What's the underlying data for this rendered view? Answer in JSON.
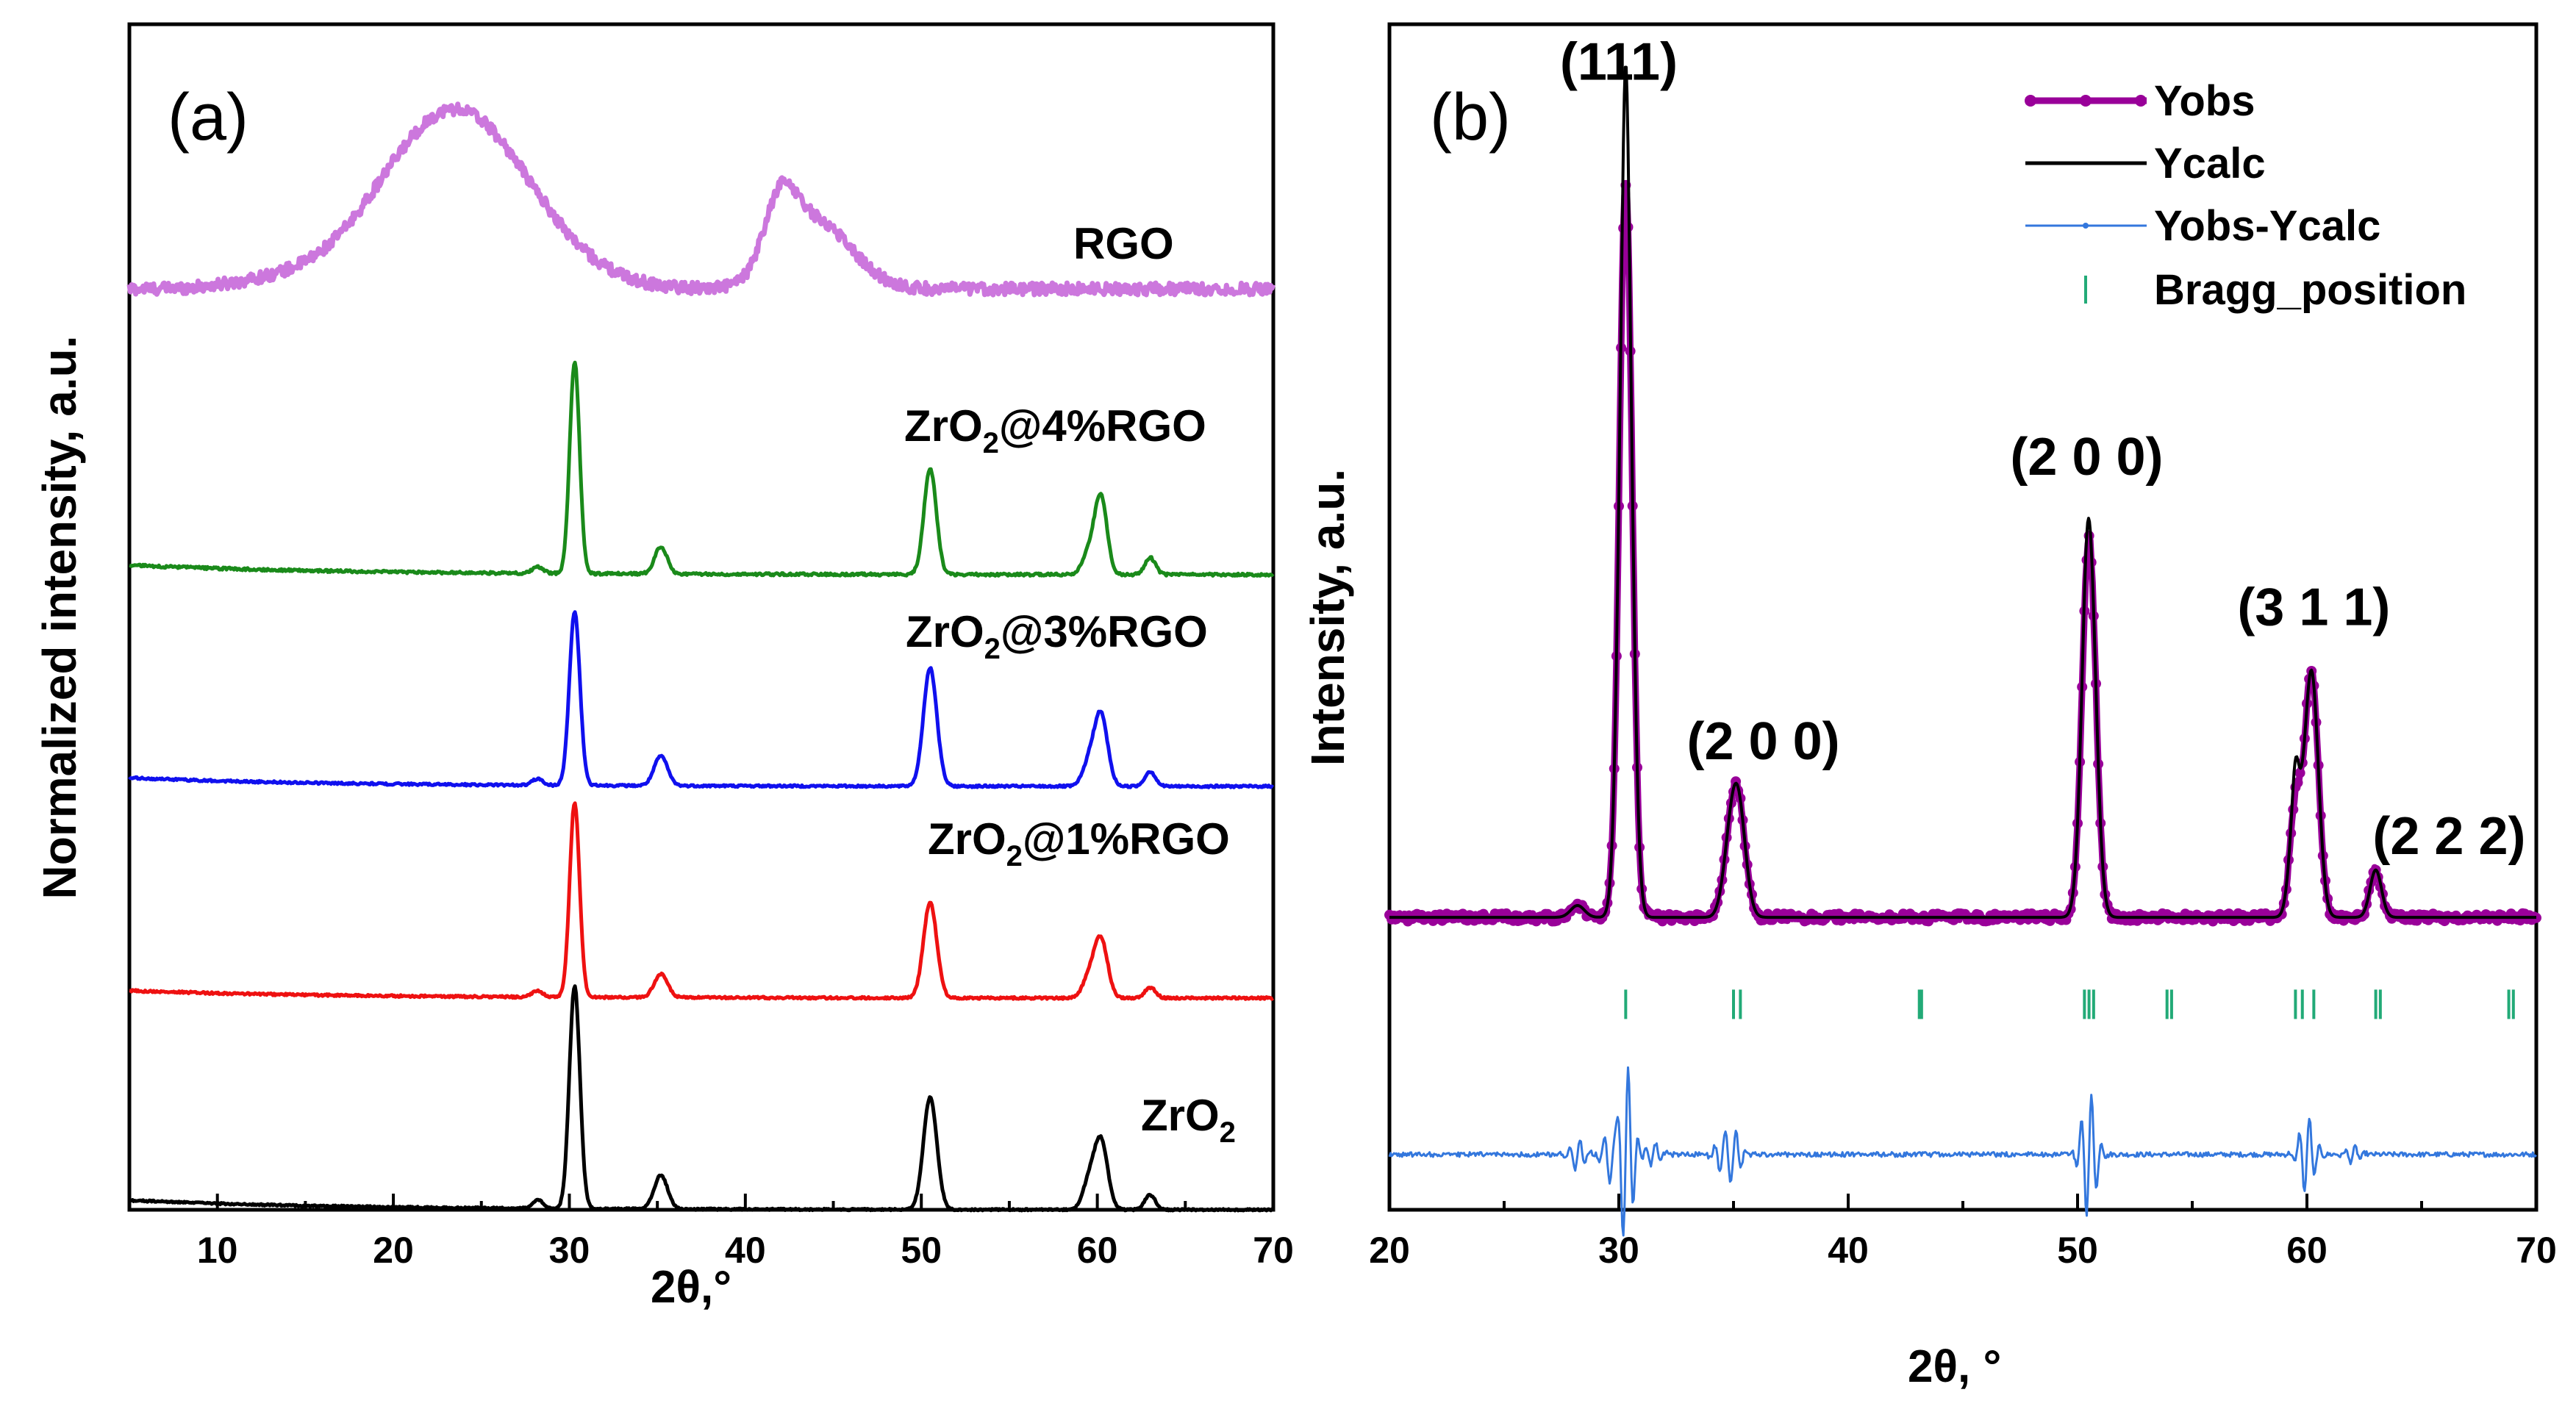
{
  "chart_data": [
    {
      "type": "line",
      "panel_label": "(a)",
      "xlabel": "2θ,°",
      "ylabel": "Normalized intensity, a.u.",
      "xlim": [
        5,
        70
      ],
      "ylim": [
        0,
        5.6
      ],
      "xticks": [
        10,
        20,
        30,
        40,
        50,
        60,
        70
      ],
      "yticks": [],
      "series": [
        {
          "name": "RGO",
          "label": "RGO",
          "color": "#cc77dd",
          "offset": 4.35,
          "baseline": 0.0,
          "noise": 0.028,
          "peaks": [
            [
              23.5,
              0.85,
              4.2
            ],
            [
              42.0,
              0.3,
              0.9
            ],
            [
              44.0,
              0.32,
              2.0
            ],
            [
              13.0,
              0.03,
              2.5
            ]
          ]
        },
        {
          "name": "ZrO2@4%RGO",
          "label_main": "ZrO",
          "label_sub": "2",
          "label_rest": "@4%RGO",
          "color": "#1a8a1a",
          "offset": 3.0,
          "baseline": 0.045,
          "noise": 0.006,
          "peaks": [
            [
              30.3,
              1.0,
              0.28
            ],
            [
              35.2,
              0.13,
              0.35
            ],
            [
              50.5,
              0.5,
              0.35
            ],
            [
              60.2,
              0.37,
              0.35
            ],
            [
              59.5,
              0.1,
              0.35
            ],
            [
              63.0,
              0.08,
              0.3
            ],
            [
              28.2,
              0.03,
              0.3
            ]
          ]
        },
        {
          "name": "ZrO2@3%RGO",
          "label_main": "ZrO",
          "label_sub": "2",
          "label_rest": "@3%RGO",
          "color": "#1010ee",
          "offset": 2.0,
          "baseline": 0.04,
          "noise": 0.005,
          "peaks": [
            [
              30.3,
              0.82,
              0.3
            ],
            [
              35.2,
              0.14,
              0.38
            ],
            [
              50.5,
              0.56,
              0.38
            ],
            [
              60.2,
              0.34,
              0.38
            ],
            [
              59.5,
              0.1,
              0.35
            ],
            [
              63.0,
              0.07,
              0.3
            ],
            [
              28.2,
              0.03,
              0.3
            ]
          ]
        },
        {
          "name": "ZrO2@1%RGO",
          "label_main": "ZrO",
          "label_sub": "2",
          "label_rest": "@1%RGO",
          "color": "#ee1111",
          "offset": 1.0,
          "baseline": 0.035,
          "noise": 0.005,
          "peaks": [
            [
              30.3,
              0.92,
              0.28
            ],
            [
              35.2,
              0.11,
              0.38
            ],
            [
              50.5,
              0.45,
              0.38
            ],
            [
              60.2,
              0.28,
              0.38
            ],
            [
              59.5,
              0.09,
              0.35
            ],
            [
              63.0,
              0.05,
              0.3
            ],
            [
              28.2,
              0.03,
              0.3
            ]
          ]
        },
        {
          "name": "ZrO2",
          "label_main": "ZrO",
          "label_sub": "2",
          "label_rest": "",
          "color": "#000000",
          "offset": 0.0,
          "baseline": 0.045,
          "noise": 0.004,
          "peaks": [
            [
              30.3,
              1.05,
              0.3
            ],
            [
              35.2,
              0.16,
              0.38
            ],
            [
              50.5,
              0.53,
              0.38
            ],
            [
              60.2,
              0.33,
              0.38
            ],
            [
              59.5,
              0.12,
              0.35
            ],
            [
              63.0,
              0.07,
              0.3
            ],
            [
              28.2,
              0.04,
              0.3
            ]
          ]
        }
      ]
    },
    {
      "type": "line",
      "panel_label": "(b)",
      "xlabel": "2θ, °",
      "ylabel": "Intensity, a.u.",
      "xlim": [
        20,
        70
      ],
      "ylim": [
        -0.35,
        1.15
      ],
      "xticks": [
        20,
        30,
        40,
        50,
        60,
        70
      ],
      "yticks": [],
      "legend": {
        "position": "top-right",
        "entries": [
          "Yobs",
          "Ycalc",
          "Yobs-Ycalc",
          "Bragg_position"
        ]
      },
      "colors": {
        "yobs": "#990099",
        "ycalc": "#000000",
        "diff": "#3377dd",
        "bragg": "#22aa77"
      },
      "peaks": [
        [
          30.3,
          0.93,
          0.28
        ],
        [
          35.2,
          0.14,
          0.32
        ],
        [
          34.8,
          0.06,
          0.3
        ],
        [
          50.5,
          0.48,
          0.3
        ],
        [
          60.2,
          0.31,
          0.3
        ],
        [
          59.5,
          0.14,
          0.25
        ],
        [
          63.0,
          0.06,
          0.25
        ],
        [
          28.2,
          0.015,
          0.3
        ]
      ],
      "ycalc_extra": [
        [
          30.3,
          0.15,
          0.12
        ],
        [
          50.4,
          0.03,
          0.15
        ],
        [
          59.5,
          0.04,
          0.12
        ]
      ],
      "baseline": 0.02,
      "diff_offset": -0.28,
      "diff_features": [
        [
          30.3,
          0.12
        ],
        [
          50.5,
          0.08
        ],
        [
          60.0,
          0.05
        ],
        [
          35.0,
          0.03
        ],
        [
          28.2,
          0.02
        ],
        [
          29.7,
          0.04
        ],
        [
          34.5,
          0.02
        ],
        [
          31.5,
          0.015
        ],
        [
          62.0,
          0.01
        ]
      ],
      "bragg_positions": [
        30.3,
        35.0,
        35.3,
        43.1,
        43.2,
        50.3,
        50.5,
        50.7,
        53.9,
        54.1,
        59.5,
        59.8,
        60.3,
        63.0,
        63.2,
        68.8,
        69.0
      ],
      "bragg_level": -0.09,
      "annotations": [
        {
          "text": "(111)",
          "x": 30.0,
          "y": 1.08
        },
        {
          "text": "(2 0 0)",
          "x": 36.3,
          "y": 0.22
        },
        {
          "text": "(2 0 0)",
          "x": 50.4,
          "y": 0.58
        },
        {
          "text": "(3 1 1)",
          "x": 60.3,
          "y": 0.39
        },
        {
          "text": "(2 2 2)",
          "x": 66.2,
          "y": 0.1
        }
      ]
    }
  ]
}
